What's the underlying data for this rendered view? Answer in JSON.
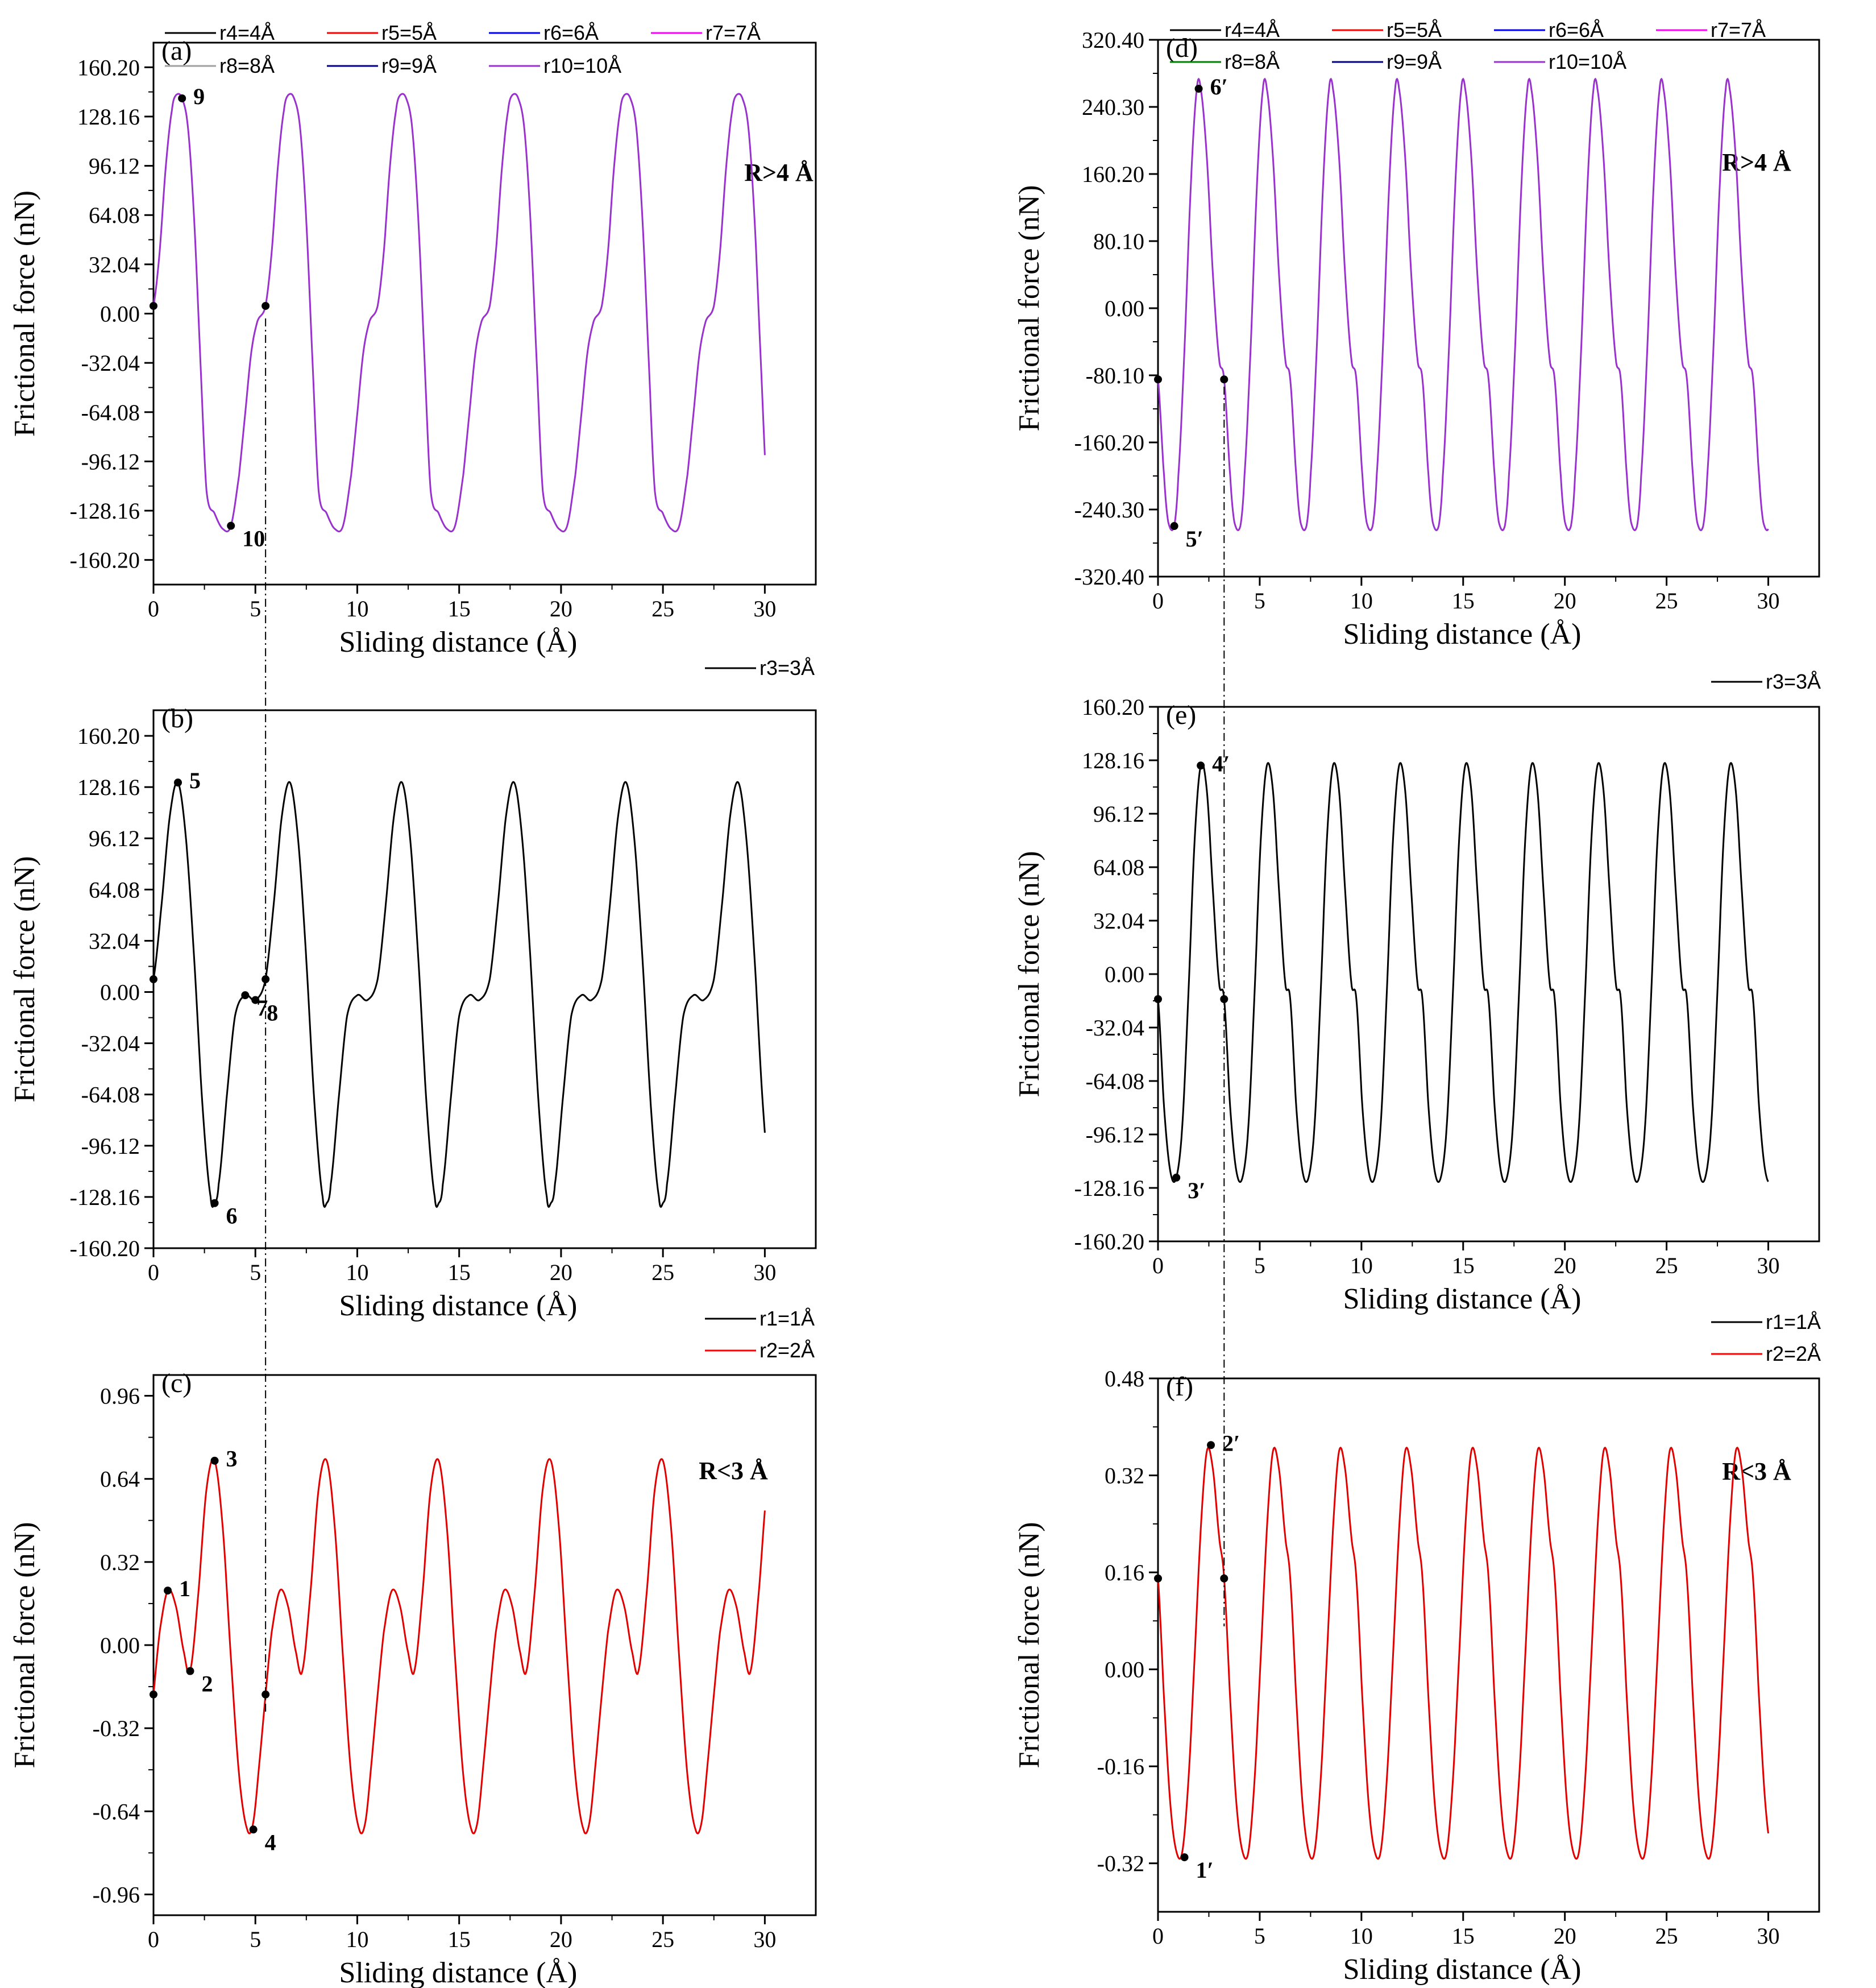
{
  "chart_data": [
    {
      "panel": "(a)",
      "type": "line",
      "xlabel": "Sliding distance (Å)",
      "ylabel": "Frictional force (nN)",
      "xlim": [
        0,
        32.5
      ],
      "ylim": [
        -176.22,
        176.22
      ],
      "xticks": [
        0,
        5,
        10,
        15,
        20,
        25,
        30
      ],
      "yticks": [
        "160.20",
        "128.16",
        "96.12",
        "64.08",
        "32.04",
        "0.00",
        "-32.04",
        "-64.08",
        "-96.12",
        "-128.16",
        "-160.20"
      ],
      "annotation": "R>4 Å",
      "legend": [
        {
          "name": "r4=4Å",
          "color": "#000000"
        },
        {
          "name": "r5=5Å",
          "color": "#ff0000"
        },
        {
          "name": "r6=6Å",
          "color": "#0000ff"
        },
        {
          "name": "r7=7Å",
          "color": "#ff00ff"
        },
        {
          "name": "r8=8Å",
          "color": "#a0a0a0"
        },
        {
          "name": "r9=9Å",
          "color": "#000080"
        },
        {
          "name": "r10=10Å",
          "color": "#9932cc"
        }
      ],
      "curve_color": "#9932cc",
      "period": 5.5,
      "waveform": {
        "x": [
          0,
          0.3,
          0.6,
          0.9,
          1.1,
          1.4,
          1.7,
          2.0,
          2.3,
          2.6,
          3.0,
          3.4,
          3.8,
          4.2,
          4.5,
          4.8,
          5.1,
          5.5
        ],
        "y": [
          5,
          40,
          95,
          132,
          142,
          140,
          120,
          60,
          -30,
          -115,
          -130,
          -140,
          -138,
          -105,
          -65,
          -25,
          -5,
          5
        ]
      },
      "x_end": 30,
      "points": [
        {
          "label": "9",
          "x": 1.4,
          "y": 140
        },
        {
          "label": "10",
          "x": 3.8,
          "y": -138
        },
        {
          "label": "",
          "x": 0,
          "y": 5
        },
        {
          "label": "",
          "x": 5.5,
          "y": 5
        }
      ]
    },
    {
      "panel": "(b)",
      "type": "line",
      "xlabel": "Sliding distance (Å)",
      "ylabel": "Frictional force (nN)",
      "xlim": [
        0,
        32.5
      ],
      "ylim": [
        -160.2,
        176.22
      ],
      "xticks": [
        0,
        5,
        10,
        15,
        20,
        25,
        30
      ],
      "yticks": [
        "160.20",
        "128.16",
        "96.12",
        "64.08",
        "32.04",
        "0.00",
        "-32.04",
        "-64.08",
        "-96.12",
        "-128.16",
        "-160.20"
      ],
      "legend": [
        {
          "name": "r3=3Å",
          "color": "#000000"
        }
      ],
      "curve_color": "#000000",
      "period": 5.5,
      "waveform": {
        "x": [
          0,
          0.4,
          0.8,
          1.2,
          1.6,
          2.0,
          2.4,
          2.8,
          3.0,
          3.2,
          3.6,
          4.0,
          4.5,
          5.0,
          5.5
        ],
        "y": [
          8,
          55,
          110,
          131,
          95,
          20,
          -70,
          -128,
          -132,
          -120,
          -65,
          -15,
          -2,
          -5,
          8
        ]
      },
      "x_end": 30,
      "points": [
        {
          "label": "5",
          "x": 1.2,
          "y": 131
        },
        {
          "label": "6",
          "x": 3.0,
          "y": -132
        },
        {
          "label": "7",
          "x": 4.5,
          "y": -2
        },
        {
          "label": "8",
          "x": 5.0,
          "y": -5
        },
        {
          "label": "",
          "x": 0,
          "y": 8
        },
        {
          "label": "",
          "x": 5.5,
          "y": 8
        }
      ]
    },
    {
      "panel": "(c)",
      "type": "line",
      "xlabel": "Sliding distance (Å)",
      "ylabel": "Frictional force (nN)",
      "xlim": [
        0,
        32.5
      ],
      "ylim": [
        -1.04,
        1.04
      ],
      "xticks": [
        0,
        5,
        10,
        15,
        20,
        25,
        30
      ],
      "yticks": [
        "0.96",
        "0.64",
        "0.32",
        "0.00",
        "-0.32",
        "-0.64",
        "-0.96"
      ],
      "annotation": "R<3 Å",
      "legend": [
        {
          "name": "r1=1Å",
          "color": "#000000"
        },
        {
          "name": "r2=2Å",
          "color": "#ff0000"
        }
      ],
      "curve_color": "#e00000",
      "period": 5.5,
      "waveform": {
        "x": [
          0,
          0.3,
          0.7,
          1.1,
          1.5,
          1.8,
          2.2,
          2.6,
          3.0,
          3.4,
          3.8,
          4.2,
          4.6,
          4.9,
          5.2,
          5.5
        ],
        "y": [
          -0.19,
          0.05,
          0.21,
          0.15,
          -0.03,
          -0.1,
          0.2,
          0.6,
          0.71,
          0.45,
          -0.05,
          -0.5,
          -0.71,
          -0.68,
          -0.45,
          -0.19
        ]
      },
      "x_end": 30,
      "points": [
        {
          "label": "1",
          "x": 0.7,
          "y": 0.21
        },
        {
          "label": "2",
          "x": 1.8,
          "y": -0.1
        },
        {
          "label": "3",
          "x": 3.0,
          "y": 0.71
        },
        {
          "label": "4",
          "x": 4.9,
          "y": -0.71
        },
        {
          "label": "",
          "x": 0,
          "y": -0.19
        },
        {
          "label": "",
          "x": 5.5,
          "y": -0.19
        }
      ]
    },
    {
      "panel": "(d)",
      "type": "line",
      "xlabel": "Sliding distance (Å)",
      "ylabel": "Frictional force (nN)",
      "xlim": [
        0,
        32.5
      ],
      "ylim": [
        -320.4,
        320.4
      ],
      "xticks": [
        0,
        5,
        10,
        15,
        20,
        25,
        30
      ],
      "yticks": [
        "320.40",
        "240.30",
        "160.20",
        "80.10",
        "0.00",
        "-80.10",
        "-160.20",
        "-240.30",
        "-320.40"
      ],
      "annotation": "R>4 Å",
      "legend": [
        {
          "name": "r4=4Å",
          "color": "#000000"
        },
        {
          "name": "r5=5Å",
          "color": "#ff0000"
        },
        {
          "name": "r6=6Å",
          "color": "#0000ff"
        },
        {
          "name": "r7=7Å",
          "color": "#ff00ff"
        },
        {
          "name": "r8=8Å",
          "color": "#008000"
        },
        {
          "name": "r9=9Å",
          "color": "#000080"
        },
        {
          "name": "r10=10Å",
          "color": "#9932cc"
        }
      ],
      "curve_color": "#9932cc",
      "period": 3.25,
      "waveform": {
        "x": [
          0,
          0.3,
          0.5,
          0.8,
          1.0,
          1.3,
          1.6,
          1.9,
          2.1,
          2.4,
          2.7,
          3.0,
          3.25
        ],
        "y": [
          -85,
          -200,
          -255,
          -260,
          -200,
          -50,
          140,
          260,
          262,
          180,
          40,
          -60,
          -85
        ]
      },
      "x_end": 30,
      "points": [
        {
          "label": "5′",
          "x": 0.8,
          "y": -260
        },
        {
          "label": "6′",
          "x": 2.0,
          "y": 262
        },
        {
          "label": "",
          "x": 0,
          "y": -85
        },
        {
          "label": "",
          "x": 3.25,
          "y": -85
        }
      ]
    },
    {
      "panel": "(e)",
      "type": "line",
      "xlabel": "Sliding distance (Å)",
      "ylabel": "Frictional force (nN)",
      "xlim": [
        0,
        32.5
      ],
      "ylim": [
        -160.2,
        160.2
      ],
      "xticks": [
        0,
        5,
        10,
        15,
        20,
        25,
        30
      ],
      "yticks": [
        "160.20",
        "128.16",
        "96.12",
        "64.08",
        "32.04",
        "0.00",
        "-32.04",
        "-64.08",
        "-96.12",
        "-128.16",
        "-160.20"
      ],
      "legend": [
        {
          "name": "r3=3Å",
          "color": "#000000"
        }
      ],
      "curve_color": "#000000",
      "period": 3.25,
      "waveform": {
        "x": [
          0,
          0.3,
          0.6,
          0.9,
          1.2,
          1.5,
          1.8,
          2.1,
          2.4,
          2.7,
          3.0,
          3.25
        ],
        "y": [
          -15,
          -80,
          -118,
          -122,
          -90,
          -10,
          80,
          125,
          110,
          50,
          -5,
          -15
        ]
      },
      "x_end": 30,
      "points": [
        {
          "label": "3′",
          "x": 0.9,
          "y": -122
        },
        {
          "label": "4′",
          "x": 2.1,
          "y": 125
        },
        {
          "label": "",
          "x": 0,
          "y": -15
        },
        {
          "label": "",
          "x": 3.25,
          "y": -15
        }
      ]
    },
    {
      "panel": "(f)",
      "type": "line",
      "xlabel": "Sliding distance (Å)",
      "ylabel": "Frictional force (nN)",
      "xlim": [
        0,
        32.5
      ],
      "ylim": [
        -0.4,
        0.48
      ],
      "xticks": [
        0,
        5,
        10,
        15,
        20,
        25,
        30
      ],
      "yticks": [
        "0.48",
        "0.32",
        "0.16",
        "0.00",
        "-0.16",
        "-0.32"
      ],
      "annotation": "R<3 Å",
      "legend": [
        {
          "name": "r1=1Å",
          "color": "#000000"
        },
        {
          "name": "r2=2Å",
          "color": "#ff0000"
        }
      ],
      "curve_color": "#e00000",
      "period": 3.25,
      "waveform": {
        "x": [
          0,
          0.3,
          0.6,
          0.9,
          1.2,
          1.5,
          1.8,
          2.1,
          2.4,
          2.7,
          3.0,
          3.25
        ],
        "y": [
          0.15,
          -0.05,
          -0.22,
          -0.3,
          -0.3,
          -0.18,
          0.02,
          0.23,
          0.36,
          0.33,
          0.22,
          0.15
        ]
      },
      "x_end": 30,
      "points": [
        {
          "label": "1′",
          "x": 1.3,
          "y": -0.31
        },
        {
          "label": "2′",
          "x": 2.6,
          "y": 0.37
        },
        {
          "label": "",
          "x": 0,
          "y": 0.15
        },
        {
          "label": "",
          "x": 3.25,
          "y": 0.15
        }
      ]
    }
  ]
}
